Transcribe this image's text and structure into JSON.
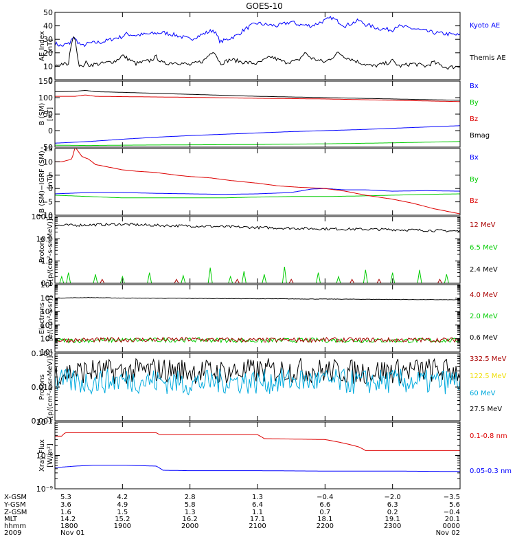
{
  "title": "GOES-10",
  "colors": {
    "black": "#000000",
    "blue": "#0000ff",
    "red": "#dd0000",
    "green": "#00cc00",
    "darkred": "#aa0000",
    "cyan": "#00aadd",
    "yellow": "#eedd00"
  },
  "chart_data": [
    {
      "type": "line",
      "ylabel_lines": [
        "AE Index",
        "[nT]"
      ],
      "ylim": [
        0,
        50
      ],
      "yscale": "linear",
      "yticks": [
        0,
        10,
        20,
        30,
        40,
        50
      ],
      "ytick_labels": [
        "0",
        "10",
        "20",
        "30",
        "40",
        "50"
      ],
      "series": [
        {
          "name": "Kyoto AE",
          "color": "#0000ff",
          "x": [
            0,
            0.1,
            0.2,
            0.22,
            0.27,
            0.3,
            0.4,
            0.5,
            0.7,
            0.9,
            1.0,
            1.05,
            1.2,
            1.4,
            1.6,
            1.8,
            2.0,
            2.2,
            2.35,
            2.45,
            2.6,
            2.7,
            2.8,
            2.9,
            3.0,
            3.1,
            3.3,
            3.5,
            3.6,
            3.8,
            4.0,
            4.1,
            4.3,
            4.5,
            4.6,
            4.8,
            5.0,
            5.05,
            5.3,
            5.6,
            5.8,
            6.0
          ],
          "y": [
            27,
            25,
            27,
            26,
            33,
            30,
            25,
            27,
            28,
            31,
            32,
            34,
            33,
            34,
            35,
            33,
            30,
            34,
            37,
            28,
            31,
            33,
            37,
            40,
            42,
            41,
            40,
            43,
            41,
            40,
            44,
            46,
            40,
            44,
            41,
            38,
            37,
            40,
            38,
            35,
            34,
            33
          ]
        },
        {
          "name": "Themis AE",
          "color": "#000000",
          "x": [
            0,
            0.1,
            0.2,
            0.25,
            0.3,
            0.35,
            0.4,
            0.45,
            0.5,
            0.7,
            0.9,
            1.0,
            1.2,
            1.4,
            1.5,
            1.6,
            1.8,
            2.0,
            2.2,
            2.35,
            2.45,
            2.6,
            2.8,
            3.0,
            3.2,
            3.4,
            3.6,
            3.7,
            3.8,
            4.0,
            4.2,
            4.3,
            4.5,
            4.7,
            4.9,
            5.0,
            5.1,
            5.3,
            5.5,
            5.6,
            5.8,
            6.0
          ],
          "y": [
            10,
            12,
            11,
            30,
            31,
            12,
            9,
            13,
            11,
            12,
            14,
            18,
            12,
            14,
            17,
            12,
            13,
            11,
            14,
            22,
            12,
            15,
            13,
            12,
            17,
            13,
            14,
            20,
            16,
            13,
            20,
            17,
            13,
            10,
            12,
            14,
            10,
            12,
            10,
            13,
            9,
            10
          ]
        }
      ],
      "legend": [
        {
          "text": "Kyoto AE",
          "color": "#0000ff"
        },
        {
          "text": "Themis AE",
          "color": "#000000"
        }
      ]
    },
    {
      "type": "line",
      "ylabel_lines": [
        "B (SM)",
        "[nT]"
      ],
      "ylim": [
        -50,
        150
      ],
      "yscale": "linear",
      "yticks": [
        -50,
        0,
        50,
        100,
        150
      ],
      "ytick_labels": [
        "-50",
        "0",
        "50",
        "100",
        "150"
      ],
      "series": [
        {
          "name": "Bx",
          "color": "#0000ff",
          "x": [
            0,
            0.5,
            1,
            1.5,
            2,
            2.5,
            3,
            3.5,
            4,
            4.5,
            5,
            5.5,
            6
          ],
          "y": [
            -38,
            -33,
            -26,
            -20,
            -15,
            -11,
            -7,
            -3,
            0,
            3,
            7,
            11,
            15
          ]
        },
        {
          "name": "By",
          "color": "#00cc00",
          "x": [
            0,
            0.5,
            1,
            2,
            3,
            4,
            5,
            6
          ],
          "y": [
            -44,
            -45,
            -44,
            -43,
            -42,
            -40,
            -37,
            -33
          ]
        },
        {
          "name": "Bz",
          "color": "#dd0000",
          "x": [
            0,
            0.3,
            0.45,
            0.6,
            1,
            2,
            3,
            4,
            5,
            6
          ],
          "y": [
            104,
            104,
            108,
            104,
            103,
            101,
            98,
            96,
            92,
            88
          ]
        },
        {
          "name": "Bmag",
          "color": "#000000",
          "x": [
            0,
            0.3,
            0.45,
            0.6,
            1,
            2,
            3,
            4,
            5,
            6
          ],
          "y": [
            118,
            119,
            122,
            118,
            116,
            110,
            104,
            100,
            96,
            92
          ]
        }
      ],
      "legend": [
        {
          "text": "Bx",
          "color": "#0000ff"
        },
        {
          "text": "By",
          "color": "#00cc00"
        },
        {
          "text": "Bz",
          "color": "#dd0000"
        },
        {
          "text": "Bmag",
          "color": "#000000"
        }
      ]
    },
    {
      "type": "line",
      "ylabel_lines": [
        "B (SM)−IGRF (SM)",
        "[nT]"
      ],
      "ylim": [
        -10,
        15
      ],
      "yscale": "linear",
      "yticks": [
        -10,
        -5,
        0,
        5,
        10,
        15
      ],
      "ytick_labels": [
        "−10",
        "−5",
        "0",
        "5",
        "10",
        "15"
      ],
      "series": [
        {
          "name": "Bx",
          "color": "#0000ff",
          "x": [
            0,
            0.5,
            1,
            1.5,
            2,
            2.5,
            3,
            3.5,
            3.8,
            4.0,
            4.3,
            4.6,
            5,
            5.5,
            6
          ],
          "y": [
            -2,
            -1.5,
            -1.5,
            -1.8,
            -2,
            -2.2,
            -2,
            -1.5,
            -0.2,
            0,
            -0.5,
            -0.5,
            -1,
            -0.8,
            -1
          ]
        },
        {
          "name": "By",
          "color": "#00cc00",
          "x": [
            0,
            0.5,
            1,
            1.5,
            2,
            2.5,
            3,
            3.5,
            4,
            4.5,
            5,
            5.5,
            6
          ],
          "y": [
            -2.5,
            -3,
            -3.5,
            -3.5,
            -3.5,
            -3.5,
            -3.2,
            -3,
            -3,
            -2.8,
            -2.5,
            -2.2,
            -2
          ]
        },
        {
          "name": "Bz",
          "color": "#dd0000",
          "x": [
            0,
            0.1,
            0.25,
            0.3,
            0.4,
            0.5,
            0.6,
            0.8,
            1.0,
            1.2,
            1.5,
            1.8,
            2.0,
            2.3,
            2.6,
            3.0,
            3.3,
            3.6,
            4.0,
            4.3,
            4.6,
            5.0,
            5.3,
            5.6,
            6.0
          ],
          "y": [
            10,
            10,
            11,
            15.5,
            12,
            11,
            9,
            8,
            7,
            6.5,
            6,
            5,
            4.5,
            4,
            3,
            2,
            1,
            0.5,
            0,
            -1,
            -2.5,
            -4,
            -5.5,
            -7.5,
            -9.5
          ]
        }
      ],
      "legend": [
        {
          "text": "Bx",
          "color": "#0000ff"
        },
        {
          "text": "By",
          "color": "#00cc00"
        },
        {
          "text": "Bz",
          "color": "#dd0000"
        }
      ]
    },
    {
      "type": "line",
      "ylabel_lines": [
        "Protons",
        "[p/(cm²-s-sr-MeV)]"
      ],
      "ylim": [
        0.1,
        100
      ],
      "yscale": "log",
      "yticks": [
        0.1,
        1,
        10,
        100
      ],
      "ytick_labels": [
        "0.1",
        "1.0",
        "10.0",
        "100.0"
      ],
      "series": [
        {
          "name": "2.4 MeV",
          "color": "#000000",
          "x": [
            0,
            0.5,
            1,
            1.5,
            2,
            2.5,
            3,
            3.5,
            4,
            4.5,
            5,
            5.5,
            6
          ],
          "y": [
            40,
            42,
            45,
            40,
            38,
            35,
            32,
            30,
            28,
            27,
            26,
            24,
            22
          ]
        },
        {
          "name": "6.5 MeV",
          "color": "#00cc00",
          "x": [
            0.1,
            0.2,
            0.6,
            1.0,
            1.4,
            1.9,
            2.3,
            2.6,
            2.8,
            3.1,
            3.4,
            3.9,
            4.2,
            4.6,
            5.0,
            5.4,
            5.8
          ],
          "y": [
            0.2,
            0.3,
            0.25,
            0.2,
            0.3,
            0.22,
            0.5,
            0.2,
            0.35,
            0.25,
            0.55,
            0.3,
            0.2,
            0.4,
            0.3,
            0.4,
            0.25
          ]
        },
        {
          "name": "12 MeV",
          "color": "#aa0000",
          "x": [
            0.7,
            1.8,
            2.7,
            3.5,
            4.4,
            4.8,
            5.7
          ],
          "y": [
            0.15,
            0.15,
            0.15,
            0.15,
            0.15,
            0.15,
            0.15
          ]
        }
      ],
      "legend": [
        {
          "text": "12 MeV",
          "color": "#aa0000"
        },
        {
          "text": "6.5 MeV",
          "color": "#00cc00"
        },
        {
          "text": "2.4 MeV",
          "color": "#000000"
        }
      ]
    },
    {
      "type": "line",
      "ylabel_lines": [
        "Electrons",
        "[e/(cm²-s-sr)]"
      ],
      "ylim": [
        10,
        1000000
      ],
      "yscale": "log",
      "yticks": [
        10,
        100,
        1000,
        10000,
        100000,
        1000000
      ],
      "ytick_labels": [
        "10¹",
        "10²",
        "10³",
        "10⁴",
        "10⁵",
        "10⁶"
      ],
      "series": [
        {
          "name": "0.6 MeV",
          "color": "#000000",
          "x": [
            0,
            0.5,
            1,
            2,
            3,
            4,
            5,
            6
          ],
          "y": [
            100000,
            110000,
            100000,
            95000,
            90000,
            85000,
            80000,
            75000
          ]
        },
        {
          "name": "2.0 MeV",
          "color": "#00cc00",
          "x": [
            0,
            1,
            2,
            3,
            4,
            5,
            6
          ],
          "y": [
            70,
            75,
            80,
            70,
            75,
            70,
            72
          ]
        },
        {
          "name": "4.0 MeV",
          "color": "#aa0000",
          "x": [
            0,
            1,
            2,
            3,
            4,
            5,
            6
          ],
          "y": [
            75,
            80,
            85,
            75,
            80,
            78,
            80
          ]
        }
      ],
      "legend": [
        {
          "text": "4.0 MeV",
          "color": "#aa0000"
        },
        {
          "text": "2.0 MeV",
          "color": "#00cc00"
        },
        {
          "text": "0.6 MeV",
          "color": "#000000"
        }
      ]
    },
    {
      "type": "line",
      "ylabel_lines": [
        "Protons",
        "[p/(cm²-s-sr-MeV)]"
      ],
      "ylim": [
        0.001,
        0.1
      ],
      "yscale": "log",
      "yticks": [
        0.001,
        0.01,
        0.1
      ],
      "ytick_labels": [
        "0.001",
        "0.010",
        "0.100"
      ],
      "series": [
        {
          "name": "27.5 MeV",
          "color": "#000000",
          "x": [
            0,
            0.5,
            1,
            1.5,
            2,
            2.5,
            3,
            3.5,
            4,
            4.5,
            5,
            5.5,
            6
          ],
          "y": [
            0.025,
            0.03,
            0.028,
            0.032,
            0.03,
            0.028,
            0.03,
            0.032,
            0.03,
            0.028,
            0.03,
            0.032,
            0.03
          ]
        },
        {
          "name": "60 MeV",
          "color": "#00aadd",
          "x": [
            0,
            0.5,
            1,
            1.5,
            2,
            2.5,
            3,
            3.5,
            4,
            4.5,
            5,
            5.5,
            6
          ],
          "y": [
            0.015,
            0.014,
            0.016,
            0.015,
            0.013,
            0.015,
            0.014,
            0.016,
            0.015,
            0.014,
            0.015,
            0.014,
            0.015
          ]
        }
      ],
      "legend": [
        {
          "text": "332.5 MeV",
          "color": "#aa0000"
        },
        {
          "text": "122.5 MeV",
          "color": "#eedd00"
        },
        {
          "text": "60 MeV",
          "color": "#00aadd"
        },
        {
          "text": "27.5 MeV",
          "color": "#000000"
        }
      ]
    },
    {
      "type": "line",
      "ylabel_lines": [
        "Xray Flux",
        "[W/m²]"
      ],
      "ylim": [
        1e-09,
        1e-07
      ],
      "yscale": "log",
      "yticks": [
        1e-09,
        1e-08,
        1e-07
      ],
      "ytick_labels": [
        "10⁻⁹",
        "10⁻⁸",
        "10⁻⁷"
      ],
      "series": [
        {
          "name": "0.1-0.8 nm",
          "color": "#dd0000",
          "x": [
            0,
            0.1,
            0.15,
            1.5,
            1.55,
            3.0,
            3.1,
            4.0,
            4.5,
            4.6,
            6.0
          ],
          "y": [
            3.8e-08,
            3.8e-08,
            4.8e-08,
            4.8e-08,
            4.2e-08,
            4.2e-08,
            3.2e-08,
            3e-08,
            1.8e-08,
            1.4e-08,
            1.4e-08
          ]
        },
        {
          "name": "0.05-0.3 nm",
          "color": "#0000ff",
          "x": [
            0,
            0.3,
            0.6,
            1.0,
            1.5,
            1.6,
            2.0,
            3.0,
            4.0,
            5.0,
            6.0
          ],
          "y": [
            4.3e-09,
            4.8e-09,
            5.1e-09,
            5.1e-09,
            4.8e-09,
            3.6e-09,
            3.5e-09,
            3.5e-09,
            3.4e-09,
            3.4e-09,
            3.3e-09
          ]
        }
      ],
      "legend": [
        {
          "text": "0.1-0.8 nm",
          "color": "#dd0000"
        },
        {
          "text": "0.05-0.3 nm",
          "color": "#0000ff"
        }
      ]
    }
  ],
  "x_axis": {
    "xlim": [
      0,
      6
    ],
    "tick_positions": [
      0,
      1,
      2,
      3,
      4,
      5,
      6
    ],
    "row_labels": [
      "X-GSM",
      "Y-GSM",
      "Z-GSM",
      "MLT",
      "hhmm",
      "2009"
    ],
    "rows": [
      [
        "5.3",
        "4.2",
        "2.8",
        "1.3",
        "−0.4",
        "−2.0",
        "−3.5"
      ],
      [
        "3.6",
        "4.9",
        "5.8",
        "6.4",
        "6.6",
        "6.3",
        "5.6"
      ],
      [
        "1.6",
        "1.5",
        "1.3",
        "1.1",
        "0.7",
        "0.2",
        "−0.4"
      ],
      [
        "14.2",
        "15.2",
        "16.2",
        "17.1",
        "18.1",
        "19.1",
        "20.1"
      ],
      [
        "1800",
        "1900",
        "2000",
        "2100",
        "2200",
        "2300",
        "0000"
      ],
      [
        "Nov 01",
        "",
        "",
        "",
        "",
        "",
        "Nov 02"
      ]
    ]
  }
}
